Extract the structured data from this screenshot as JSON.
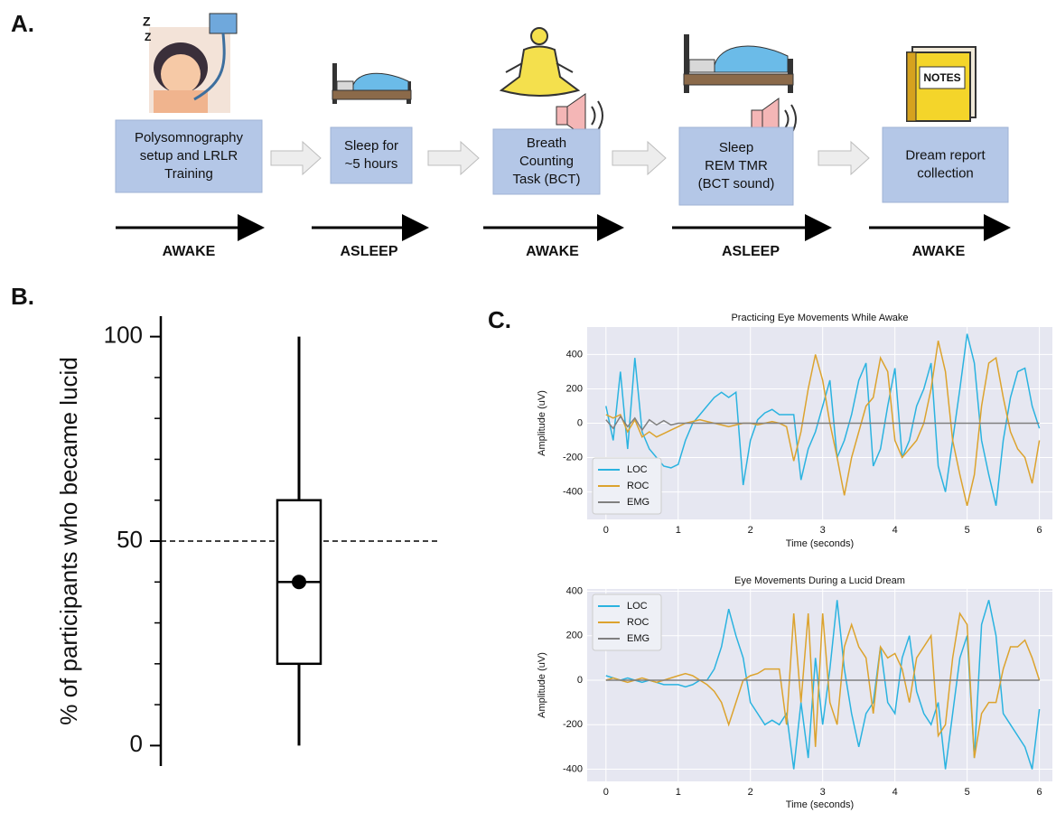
{
  "panel_labels": [
    "A.",
    "B.",
    "C."
  ],
  "steps": [
    {
      "lines": [
        "Polysomnography",
        "setup and LRLR",
        "Training"
      ],
      "state": "AWAKE"
    },
    {
      "lines": [
        "Sleep for",
        "~5 hours"
      ],
      "state": "ASLEEP"
    },
    {
      "lines": [
        "Breath",
        "Counting",
        "Task (BCT)"
      ],
      "state": "AWAKE"
    },
    {
      "lines": [
        "Sleep",
        "REM TMR",
        "(BCT sound)"
      ],
      "state": "ASLEEP"
    },
    {
      "lines": [
        "Dream report",
        "collection"
      ],
      "state": "AWAKE"
    }
  ],
  "notes_icon_text": "NOTES",
  "chart_data": [
    {
      "type": "box",
      "ylabel": "% of participants who became lucid",
      "ylim": [
        -5,
        105
      ],
      "yticks": [
        0,
        50,
        100
      ],
      "yticks_minor": [
        10,
        20,
        30,
        40,
        60,
        70,
        80,
        90
      ],
      "min": 0,
      "q1": 20,
      "median": 40,
      "q3": 60,
      "max": 100,
      "mean": 40,
      "reference_line": 50
    },
    {
      "type": "line",
      "title": "Practicing Eye Movements While Awake",
      "xlabel": "Time (seconds)",
      "ylabel": "Amplitude (uV)",
      "xlim": [
        -0.26,
        6.18
      ],
      "ylim": [
        -560,
        560
      ],
      "xticks": [
        0,
        1,
        2,
        3,
        4,
        5,
        6
      ],
      "yticks": [
        -400,
        -200,
        0,
        200,
        400
      ],
      "grid": true,
      "legend": "lower left",
      "x": [
        0,
        0.1,
        0.2,
        0.3,
        0.4,
        0.5,
        0.6,
        0.7,
        0.8,
        0.9,
        1,
        1.1,
        1.2,
        1.3,
        1.4,
        1.5,
        1.6,
        1.7,
        1.8,
        1.9,
        2,
        2.1,
        2.2,
        2.3,
        2.4,
        2.5,
        2.6,
        2.7,
        2.8,
        2.9,
        3,
        3.1,
        3.2,
        3.3,
        3.4,
        3.5,
        3.6,
        3.7,
        3.8,
        3.9,
        4,
        4.1,
        4.2,
        4.3,
        4.4,
        4.5,
        4.6,
        4.7,
        4.8,
        4.9,
        5,
        5.1,
        5.2,
        5.3,
        5.4,
        5.5,
        5.6,
        5.7,
        5.8,
        5.9,
        6
      ],
      "series": [
        {
          "name": "LOC",
          "color": "#2bb3e0",
          "values": [
            100,
            -100,
            300,
            -150,
            380,
            -50,
            -150,
            -200,
            -250,
            -260,
            -240,
            -100,
            0,
            50,
            100,
            150,
            180,
            150,
            180,
            -360,
            -100,
            20,
            60,
            80,
            50,
            50,
            50,
            -330,
            -150,
            -50,
            100,
            250,
            -200,
            -100,
            50,
            250,
            350,
            -250,
            -150,
            100,
            320,
            -200,
            -100,
            100,
            200,
            350,
            -250,
            -400,
            -100,
            200,
            520,
            350,
            -100,
            -300,
            -480,
            -100,
            150,
            300,
            320,
            100,
            -30
          ]
        },
        {
          "name": "ROC",
          "color": "#dca32e",
          "values": [
            50,
            30,
            50,
            -50,
            20,
            -80,
            -50,
            -80,
            -60,
            -40,
            -20,
            0,
            10,
            20,
            10,
            0,
            -10,
            -20,
            -10,
            0,
            0,
            -10,
            0,
            10,
            0,
            -20,
            -220,
            -50,
            200,
            400,
            250,
            0,
            -200,
            -420,
            -200,
            -50,
            100,
            150,
            380,
            300,
            -100,
            -200,
            -150,
            -100,
            0,
            200,
            480,
            300,
            -100,
            -300,
            -480,
            -300,
            100,
            350,
            380,
            150,
            -50,
            -150,
            -200,
            -350,
            -100
          ]
        },
        {
          "name": "EMG",
          "color": "#808080",
          "values": [
            20,
            -30,
            40,
            -20,
            30,
            -40,
            20,
            -10,
            15,
            -10,
            0,
            0,
            0,
            0,
            0,
            0,
            0,
            0,
            0,
            0,
            0,
            0,
            0,
            0,
            0,
            0,
            0,
            0,
            0,
            0,
            0,
            0,
            0,
            0,
            0,
            0,
            0,
            0,
            0,
            0,
            0,
            0,
            0,
            0,
            0,
            0,
            0,
            0,
            0,
            0,
            0,
            0,
            0,
            0,
            0,
            0,
            0,
            0,
            0,
            0,
            0
          ]
        }
      ]
    },
    {
      "type": "line",
      "title": "Eye Movements During a Lucid Dream",
      "xlabel": "Time (seconds)",
      "ylabel": "Amplitude (uV)",
      "xlim": [
        -0.26,
        6.18
      ],
      "ylim": [
        -455,
        410
      ],
      "xticks": [
        0,
        1,
        2,
        3,
        4,
        5,
        6
      ],
      "yticks": [
        -400,
        -200,
        0,
        200,
        400
      ],
      "grid": true,
      "legend": "upper left",
      "x": [
        0,
        0.1,
        0.2,
        0.3,
        0.4,
        0.5,
        0.6,
        0.7,
        0.8,
        0.9,
        1,
        1.1,
        1.2,
        1.3,
        1.4,
        1.5,
        1.6,
        1.7,
        1.8,
        1.9,
        2,
        2.1,
        2.2,
        2.3,
        2.4,
        2.5,
        2.6,
        2.7,
        2.8,
        2.9,
        3,
        3.1,
        3.2,
        3.3,
        3.4,
        3.5,
        3.6,
        3.7,
        3.8,
        3.9,
        4,
        4.1,
        4.2,
        4.3,
        4.4,
        4.5,
        4.6,
        4.7,
        4.8,
        4.9,
        5,
        5.1,
        5.2,
        5.3,
        5.4,
        5.5,
        5.6,
        5.7,
        5.8,
        5.9,
        6
      ],
      "series": [
        {
          "name": "LOC",
          "color": "#2bb3e0",
          "values": [
            20,
            10,
            0,
            10,
            0,
            -10,
            0,
            -10,
            -20,
            -20,
            -20,
            -30,
            -20,
            0,
            0,
            50,
            150,
            320,
            200,
            100,
            -100,
            -150,
            -200,
            -180,
            -200,
            -150,
            -400,
            -100,
            -350,
            100,
            -200,
            50,
            360,
            50,
            -150,
            -300,
            -150,
            -100,
            150,
            -100,
            -150,
            100,
            200,
            -50,
            -150,
            -200,
            -100,
            -400,
            -150,
            100,
            200,
            -350,
            250,
            360,
            200,
            -150,
            -200,
            -250,
            -300,
            -400,
            -130
          ]
        },
        {
          "name": "ROC",
          "color": "#dca32e",
          "values": [
            0,
            10,
            0,
            -10,
            0,
            10,
            0,
            -10,
            0,
            10,
            20,
            30,
            20,
            0,
            -20,
            -50,
            -100,
            -200,
            -100,
            0,
            20,
            30,
            50,
            50,
            50,
            -200,
            300,
            -100,
            300,
            -300,
            300,
            -100,
            -200,
            150,
            250,
            150,
            100,
            -150,
            150,
            100,
            120,
            50,
            -100,
            100,
            150,
            200,
            -250,
            -200,
            100,
            300,
            250,
            -350,
            -150,
            -100,
            -100,
            50,
            150,
            150,
            180,
            100,
            0
          ]
        },
        {
          "name": "EMG",
          "color": "#808080",
          "values": [
            0,
            0,
            0,
            0,
            0,
            0,
            0,
            0,
            0,
            0,
            0,
            0,
            0,
            0,
            0,
            0,
            0,
            0,
            0,
            0,
            0,
            0,
            0,
            0,
            0,
            0,
            0,
            0,
            0,
            0,
            0,
            0,
            0,
            0,
            0,
            0,
            0,
            0,
            0,
            0,
            0,
            0,
            0,
            0,
            0,
            0,
            0,
            0,
            0,
            0,
            0,
            0,
            0,
            0,
            0,
            0,
            0,
            0,
            0,
            0,
            0
          ]
        }
      ]
    }
  ]
}
